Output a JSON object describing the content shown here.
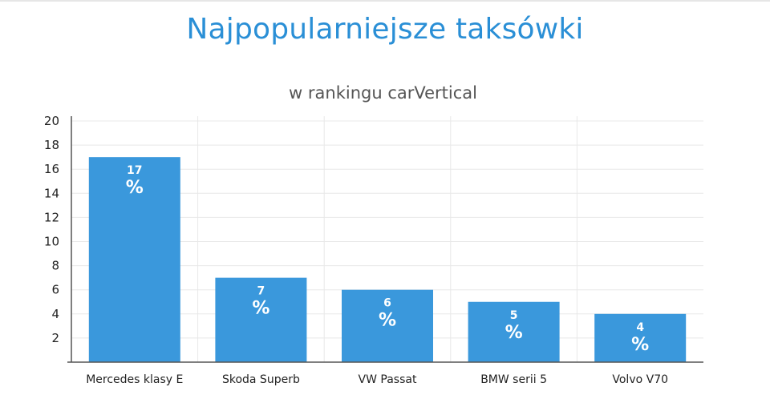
{
  "chart_data": {
    "type": "bar",
    "title": "Najpopularniejsze taksówki",
    "subtitle": "w rankingu carVertical",
    "categories": [
      "Mercedes klasy E",
      "Skoda Superb",
      "VW Passat",
      "BMW serii 5",
      "Volvo V70"
    ],
    "values": [
      17,
      7,
      6,
      5,
      4
    ],
    "value_suffix": "%",
    "yticks": [
      2,
      4,
      6,
      8,
      10,
      12,
      14,
      16,
      18,
      20
    ],
    "ylim": [
      0,
      20
    ],
    "xlabel": "",
    "ylabel": "",
    "grid": true,
    "bar_color": "#3a98dc",
    "grid_color": "#e8e8e8",
    "axis_color": "#555555"
  }
}
